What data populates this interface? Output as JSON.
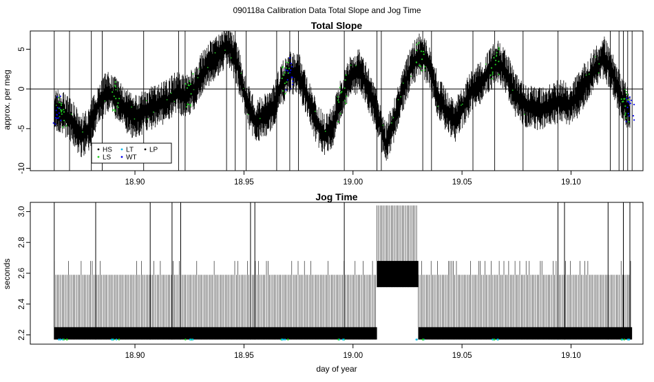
{
  "suptitle": "090118a   Calibration Data Total Slope and Jog Time",
  "colors": {
    "HS": "#000000",
    "LS": "#22cc22",
    "LT": "#00bbee",
    "WT": "#0000ee",
    "LP": "#000000"
  },
  "chart_data": [
    {
      "type": "line",
      "title": "Total Slope",
      "xlabel": "",
      "ylabel": "approx. per meg",
      "xlim": [
        18.852,
        19.133
      ],
      "ylim": [
        -10.3,
        7.3
      ],
      "xticks": [
        18.9,
        18.95,
        19.0,
        19.05,
        19.1
      ],
      "xtick_labels": [
        "18.90",
        "18.95",
        "19.00",
        "19.05",
        "19.10"
      ],
      "yticks": [
        -10,
        -5,
        0,
        5
      ],
      "ytick_labels": [
        "-10",
        "-5",
        "0",
        "5"
      ],
      "hline": 0,
      "legend": {
        "position": "bottom-left",
        "entries": [
          {
            "label": "HS",
            "color": "#000000"
          },
          {
            "label": "LS",
            "color": "#22cc22"
          },
          {
            "label": "LT",
            "color": "#00bbee"
          },
          {
            "label": "WT",
            "color": "#0000ee"
          },
          {
            "label": "LP",
            "color": "#000000"
          }
        ]
      },
      "series": [
        {
          "x": [
            18.863,
            18.867,
            18.871,
            18.875,
            18.879,
            18.883,
            18.887,
            18.891,
            18.895,
            18.899,
            18.903,
            18.907,
            18.911,
            18.915,
            18.919,
            18.923,
            18.927,
            18.931,
            18.935,
            18.939,
            18.943,
            18.947,
            18.951,
            18.955,
            18.959,
            18.963,
            18.967,
            18.971,
            18.975,
            18.979,
            18.983,
            18.987,
            18.991,
            18.995,
            18.999,
            19.003,
            19.007,
            19.011,
            19.015,
            19.019,
            19.023,
            19.027,
            19.031,
            19.035,
            19.039,
            19.043,
            19.047,
            19.051,
            19.055,
            19.059,
            19.063,
            19.067,
            19.071,
            19.075,
            19.079,
            19.083,
            19.087,
            19.091,
            19.095,
            19.099,
            19.103,
            19.107,
            19.111,
            19.115,
            19.119,
            19.123,
            19.127
          ],
          "y": [
            -2.5,
            -3,
            -4,
            -6,
            -5,
            -2,
            -0.5,
            -1,
            -2.5,
            -3.5,
            -3,
            -2.5,
            -2,
            -1.5,
            -0.5,
            -1,
            0,
            2,
            3.5,
            4.5,
            5.5,
            3,
            -1.5,
            -4,
            -3.5,
            -2.5,
            0.5,
            2,
            2,
            -1,
            -4,
            -6,
            -4.5,
            -1,
            1.5,
            2.5,
            0,
            -3,
            -7,
            -4,
            0,
            3,
            4.5,
            3,
            -1,
            -3,
            -4,
            -2,
            0,
            1,
            2.5,
            3.5,
            1.5,
            -1,
            -2,
            -2.5,
            -2.5,
            -2,
            -1.5,
            -2,
            -1,
            1,
            2.5,
            4,
            2,
            -1,
            -3
          ]
        }
      ]
    },
    {
      "type": "line",
      "title": "Jog Time",
      "xlabel": "day of year",
      "ylabel": "seconds",
      "xlim": [
        18.852,
        19.133
      ],
      "ylim": [
        2.14,
        3.06
      ],
      "xticks": [
        18.9,
        18.95,
        19.0,
        19.05,
        19.1
      ],
      "xtick_labels": [
        "18.90",
        "18.95",
        "19.00",
        "19.05",
        "19.10"
      ],
      "yticks": [
        2.2,
        2.4,
        2.6,
        2.8,
        3.0
      ],
      "ytick_labels": [
        "2.2",
        "2.4",
        "2.6",
        "2.8",
        "3.0"
      ],
      "series": [
        {
          "segments": [
            {
              "x": [
                18.863,
                19.011
              ],
              "low": 2.17,
              "mid": 2.25,
              "high": 2.59
            },
            {
              "x": [
                19.011,
                19.03
              ],
              "low": 2.51,
              "mid": 2.68,
              "high": 3.04
            },
            {
              "x": [
                19.03,
                19.128
              ],
              "low": 2.17,
              "mid": 2.25,
              "high": 2.59
            }
          ]
        }
      ]
    }
  ]
}
